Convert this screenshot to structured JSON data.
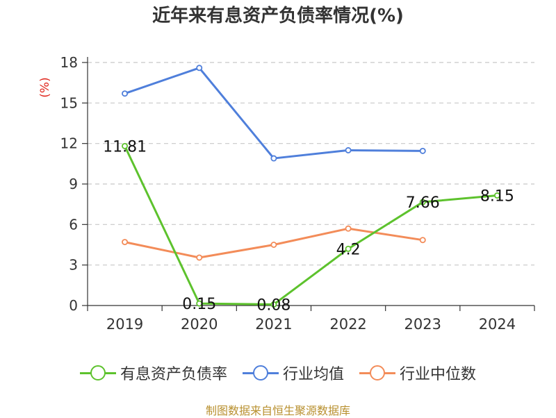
{
  "chart_data": {
    "type": "line",
    "title": "近年来有息资产负债率情况(%)",
    "ylabel": "(%)",
    "xlabel": "",
    "categories": [
      "2019",
      "2020",
      "2021",
      "2022",
      "2023",
      "2024"
    ],
    "ylim": [
      0,
      18
    ],
    "yticks": [
      0,
      3,
      6,
      9,
      12,
      15,
      18
    ],
    "grid": true,
    "legend_position": "bottom",
    "series": [
      {
        "name": "有息资产负债率",
        "color": "#5dc22d",
        "values": [
          11.81,
          0.15,
          0.08,
          4.2,
          7.66,
          8.15
        ],
        "labels": [
          "11.81",
          "0.15",
          "0.08",
          "4.2",
          "7.66",
          "8.15"
        ]
      },
      {
        "name": "行业均值",
        "color": "#4f7fdb",
        "values": [
          15.7,
          17.6,
          10.9,
          11.5,
          11.45,
          null
        ]
      },
      {
        "name": "行业中位数",
        "color": "#f38c59",
        "values": [
          4.7,
          3.55,
          4.5,
          5.7,
          4.85,
          null
        ]
      }
    ]
  },
  "source": "制图数据来自恒生聚源数据库"
}
